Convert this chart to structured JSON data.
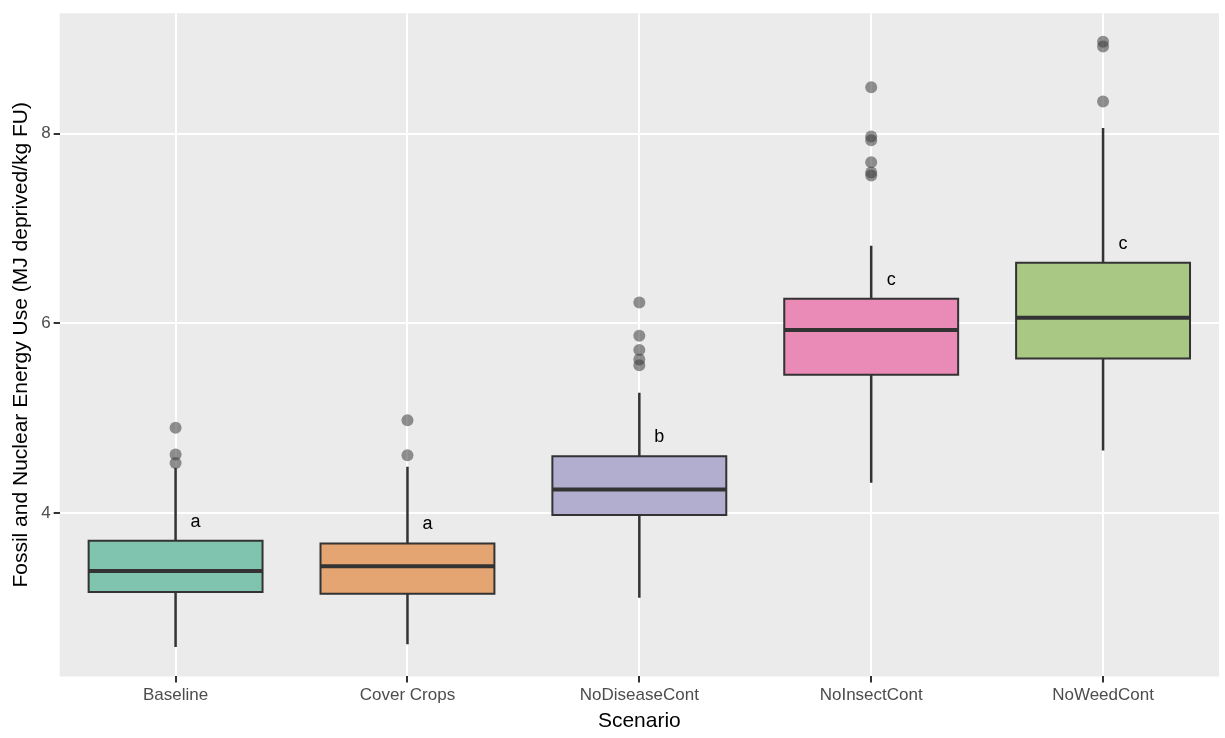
{
  "chart_data": {
    "type": "box",
    "xlabel": "Scenario",
    "ylabel": "Fossil and Nuclear Energy Use (MJ deprived/kg FU)",
    "categories": [
      "Baseline",
      "Cover Crops",
      "NoDiseaseCont",
      "NoInsectCont",
      "NoWeedCont"
    ],
    "colors": [
      "#80c4b0",
      "#e4a572",
      "#b1aed0",
      "#e98ab7",
      "#a8c884"
    ],
    "boxes": [
      {
        "low": 2.59,
        "q1": 3.17,
        "median": 3.39,
        "q3": 3.71,
        "high": 4.48,
        "outliers": [
          4.9,
          4.62,
          4.53
        ]
      },
      {
        "low": 2.62,
        "q1": 3.15,
        "median": 3.44,
        "q3": 3.68,
        "high": 4.49,
        "outliers": [
          4.98,
          4.61
        ]
      },
      {
        "low": 3.11,
        "q1": 3.98,
        "median": 4.25,
        "q3": 4.6,
        "high": 5.27,
        "outliers": [
          6.22,
          5.87,
          5.72,
          5.62,
          5.56
        ]
      },
      {
        "low": 4.32,
        "q1": 5.46,
        "median": 5.93,
        "q3": 6.26,
        "high": 6.82,
        "outliers": [
          8.49,
          7.97,
          7.93,
          7.7,
          7.59,
          7.56
        ]
      },
      {
        "low": 4.66,
        "q1": 5.63,
        "median": 6.06,
        "q3": 6.64,
        "high": 8.06,
        "outliers": [
          8.34,
          8.97,
          8.92
        ]
      }
    ],
    "ylim": [
      2.28,
      9.27
    ],
    "yticks": [
      4,
      6,
      8
    ],
    "grid": true,
    "legend": false,
    "annotations": [
      {
        "text": "a",
        "x": "Baseline",
        "y": 3.91
      },
      {
        "text": "a",
        "x": "Cover Crops",
        "y": 3.89
      },
      {
        "text": "b",
        "x": "NoDiseaseCont",
        "y": 4.8
      },
      {
        "text": "c",
        "x": "NoInsectCont",
        "y": 6.46
      },
      {
        "text": "c",
        "x": "NoWeedCont",
        "y": 6.84
      }
    ]
  }
}
